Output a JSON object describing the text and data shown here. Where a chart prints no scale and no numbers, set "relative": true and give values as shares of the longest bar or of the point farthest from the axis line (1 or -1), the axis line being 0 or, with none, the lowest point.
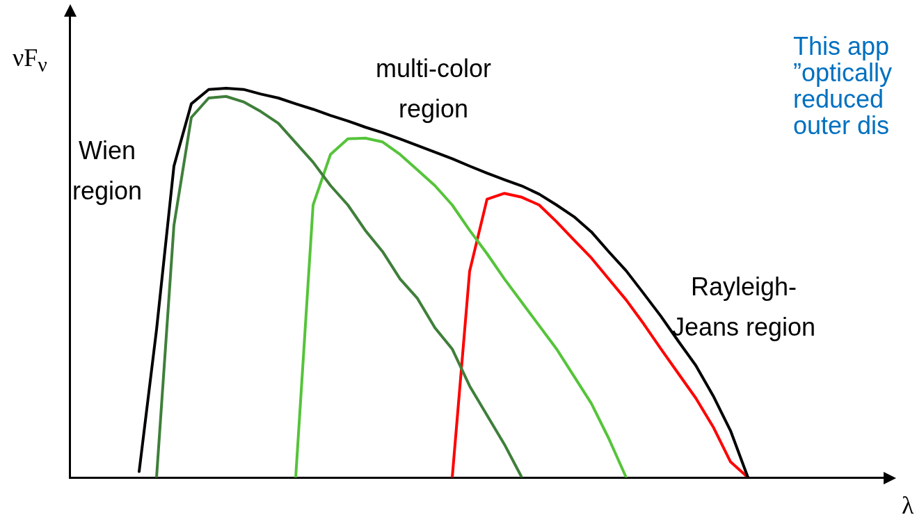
{
  "chart_data": {
    "type": "line",
    "relative": true,
    "xlabel": "λ",
    "ylabel": "νF$_{ν}$",
    "grid": false,
    "legend": false,
    "marker": "none",
    "line_style": "solid",
    "categories": [
      null,
      null,
      null,
      null,
      null,
      null,
      null,
      null,
      null,
      null,
      null,
      null,
      null,
      null,
      null,
      null,
      null,
      null,
      null,
      null,
      null,
      null,
      null,
      null,
      null,
      null,
      null,
      null,
      null,
      null,
      null,
      null,
      null,
      null,
      null,
      null,
      null,
      null,
      null,
      null,
      null,
      null,
      null,
      null,
      null,
      null,
      null,
      null
    ],
    "series": [
      {
        "color": "#000000",
        "values": [
          null,
          null,
          null,
          null,
          0.015,
          0.38,
          0.8,
          0.96,
          0.997,
          1,
          0.997,
          0.985,
          0.975,
          0.96,
          0.946,
          0.93,
          0.916,
          0.9,
          0.886,
          0.87,
          0.853,
          0.836,
          0.819,
          0.8,
          0.782,
          0.765,
          0.749,
          0.728,
          0.7,
          0.67,
          0.631,
          0.58,
          0.531,
          0.473,
          0.414,
          0.35,
          0.288,
          0.21,
          0.12,
          0,
          null,
          null,
          null,
          null,
          null,
          null,
          null,
          null
        ]
      },
      {
        "color": "#3f7f3a",
        "values": [
          null,
          null,
          null,
          null,
          null,
          0,
          0.648,
          0.925,
          0.975,
          0.979,
          0.965,
          0.94,
          0.91,
          0.86,
          0.81,
          0.75,
          0.7,
          0.635,
          0.58,
          0.51,
          0.46,
          0.385,
          0.33,
          0.235,
          0.16,
          0.085,
          0,
          null,
          null,
          null,
          null,
          null,
          null,
          null,
          null,
          null,
          null,
          null,
          null,
          null,
          null,
          null,
          null,
          null,
          null,
          null,
          null,
          null
        ]
      },
      {
        "color": "#55c43a",
        "values": [
          null,
          null,
          null,
          null,
          null,
          null,
          null,
          null,
          null,
          null,
          null,
          null,
          null,
          0,
          0.7,
          0.83,
          0.87,
          0.872,
          0.862,
          0.83,
          0.79,
          0.75,
          0.7,
          0.635,
          0.575,
          0.51,
          0.45,
          0.39,
          0.33,
          0.26,
          0.19,
          0.1,
          0,
          null,
          null,
          null,
          null,
          null,
          null,
          null,
          null,
          null,
          null,
          null,
          null,
          null,
          null,
          null
        ]
      },
      {
        "color": "#ff0000",
        "values": [
          null,
          null,
          null,
          null,
          null,
          null,
          null,
          null,
          null,
          null,
          null,
          null,
          null,
          null,
          null,
          null,
          null,
          null,
          null,
          null,
          null,
          null,
          0,
          0.53,
          0.715,
          0.73,
          0.72,
          0.7,
          0.657,
          0.61,
          0.564,
          0.51,
          0.456,
          0.395,
          0.33,
          0.267,
          0.204,
          0.13,
          0.04,
          0,
          null,
          null,
          null,
          null,
          null,
          null,
          null,
          null
        ]
      }
    ],
    "annotations": [
      "Wien\nregion",
      "multi-color\nregion",
      "Rayleigh-\nJeans region",
      "This app\n”optically\nreduced\nouter dis"
    ]
  }
}
